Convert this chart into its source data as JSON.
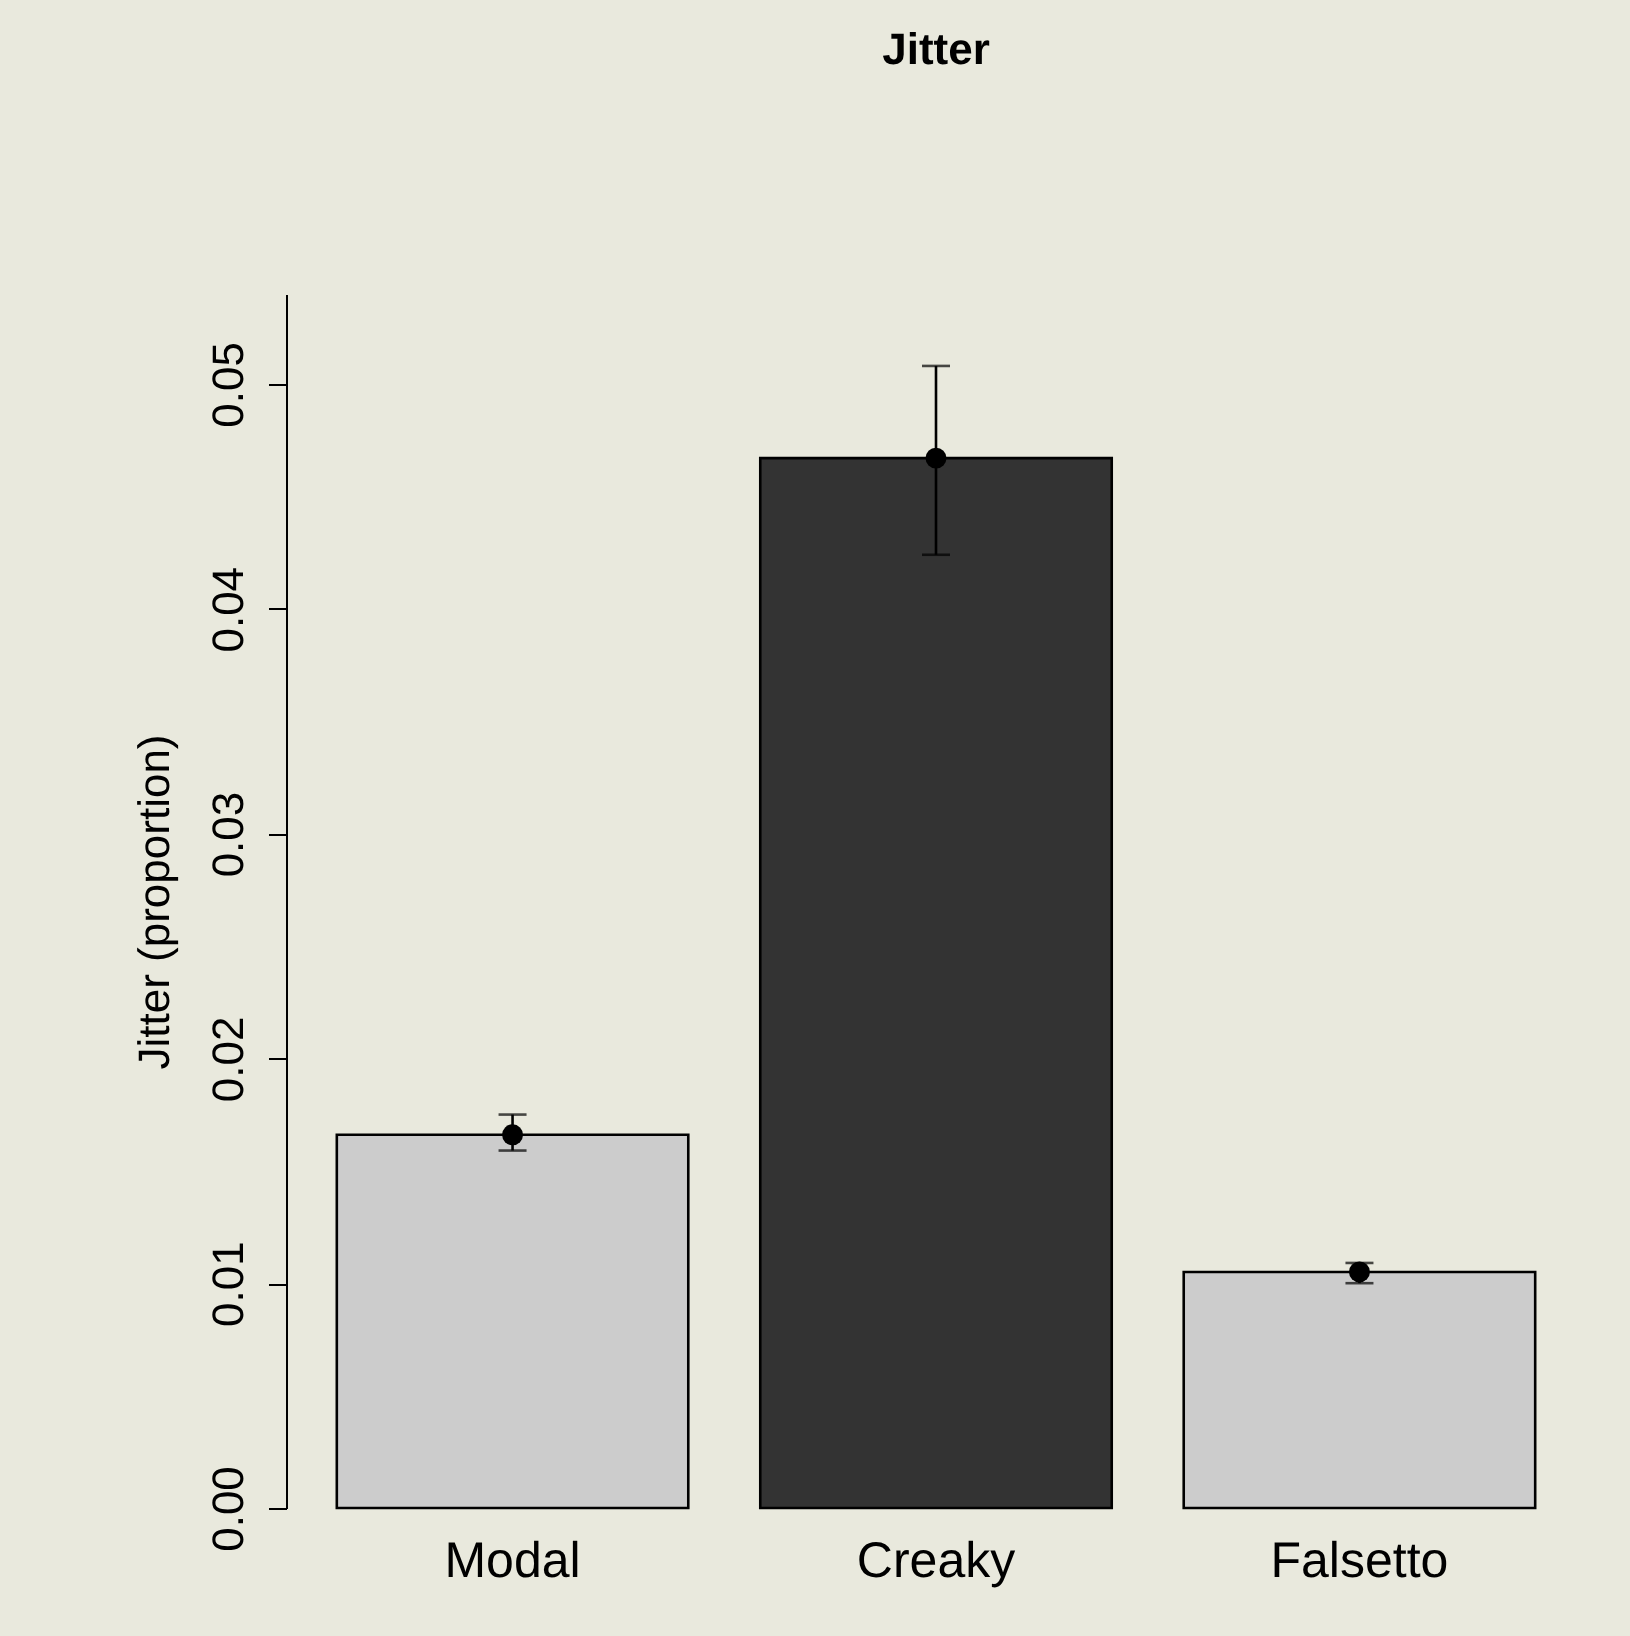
{
  "chart_data": {
    "type": "bar",
    "title": "Jitter",
    "ylabel": "Jitter (proportion)",
    "categories": [
      "Modal",
      "Creaky",
      "Falsetto"
    ],
    "series": [
      {
        "type": "bar",
        "values": [
          0.0166,
          0.0467,
          0.0105
        ],
        "colors": [
          "#cccccc",
          "#333333",
          "#cccccc"
        ],
        "errors": [
          [
            0.0159,
            0.0175
          ],
          [
            0.0424,
            0.0508
          ],
          [
            0.01,
            0.0109
          ]
        ]
      },
      {
        "type": "scatter",
        "x": [
          "Modal",
          "Creaky",
          "Falsetto"
        ],
        "values": [
          0.0166,
          0.0467,
          0.0105
        ],
        "color": "#000000",
        "marker": "circle"
      }
    ],
    "ylim": [
      0,
      0.054
    ],
    "yticks": [
      {
        "value": 0,
        "label": "0.00"
      },
      {
        "value": 0.01,
        "label": "0.01"
      },
      {
        "value": 0.02,
        "label": "0.02"
      },
      {
        "value": 0.03,
        "label": "0.03"
      },
      {
        "value": 0.04,
        "label": "0.04"
      },
      {
        "value": 0.05,
        "label": "0.05"
      }
    ],
    "grid": false,
    "legend": false
  }
}
